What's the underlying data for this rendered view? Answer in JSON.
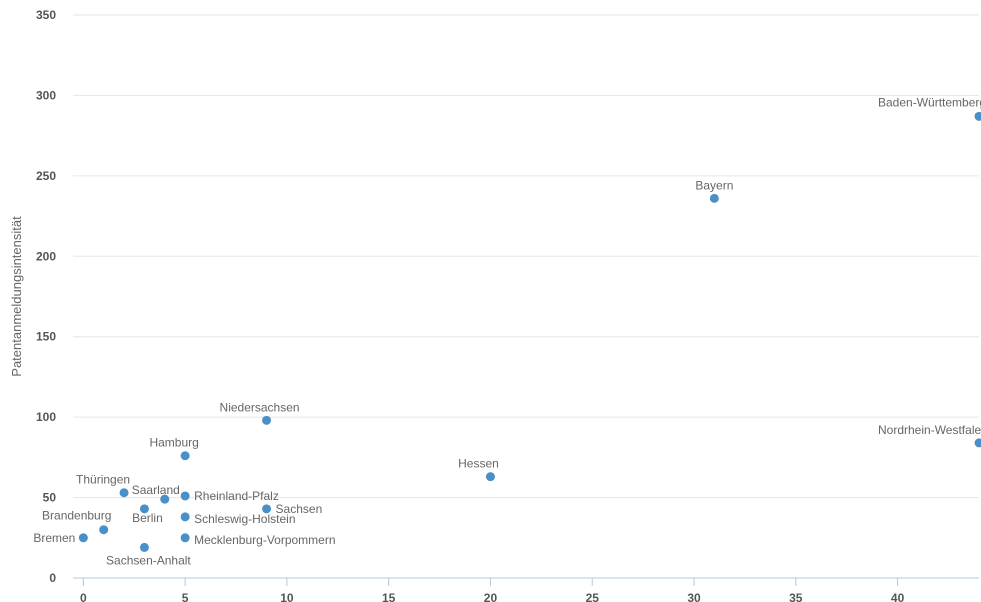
{
  "chart_data": {
    "type": "scatter",
    "title": "",
    "xlabel": "",
    "ylabel": "Patentanmeldungsintensität",
    "xlim": [
      -1,
      44
    ],
    "ylim": [
      0,
      350
    ],
    "x_ticks": [
      0,
      5,
      10,
      15,
      20,
      25,
      30,
      35,
      40
    ],
    "y_ticks": [
      0,
      50,
      100,
      150,
      200,
      250,
      300,
      350
    ],
    "grid": "horizontal",
    "marker_color": "#4a90c8",
    "points": [
      {
        "label": "Baden-Württemberg",
        "x": 44,
        "y": 287
      },
      {
        "label": "Bayern",
        "x": 31,
        "y": 236
      },
      {
        "label": "Nordrhein-Westfalen",
        "x": 44,
        "y": 84
      },
      {
        "label": "Niedersachsen",
        "x": 9,
        "y": 98
      },
      {
        "label": "Hessen",
        "x": 20,
        "y": 63
      },
      {
        "label": "Hamburg",
        "x": 5,
        "y": 76
      },
      {
        "label": "Thüringen",
        "x": 2,
        "y": 53
      },
      {
        "label": "Saarland",
        "x": 4,
        "y": 49
      },
      {
        "label": "Rheinland-Pfalz",
        "x": 5,
        "y": 51
      },
      {
        "label": "Sachsen",
        "x": 9,
        "y": 43
      },
      {
        "label": "Berlin",
        "x": 3,
        "y": 43
      },
      {
        "label": "Schleswig-Holstein",
        "x": 5,
        "y": 38
      },
      {
        "label": "Brandenburg",
        "x": 1,
        "y": 30
      },
      {
        "label": "Mecklenburg-Vorpommern",
        "x": 5,
        "y": 25
      },
      {
        "label": "Bremen",
        "x": 0,
        "y": 25
      },
      {
        "label": "Sachsen-Anhalt",
        "x": 3,
        "y": 19
      }
    ]
  }
}
